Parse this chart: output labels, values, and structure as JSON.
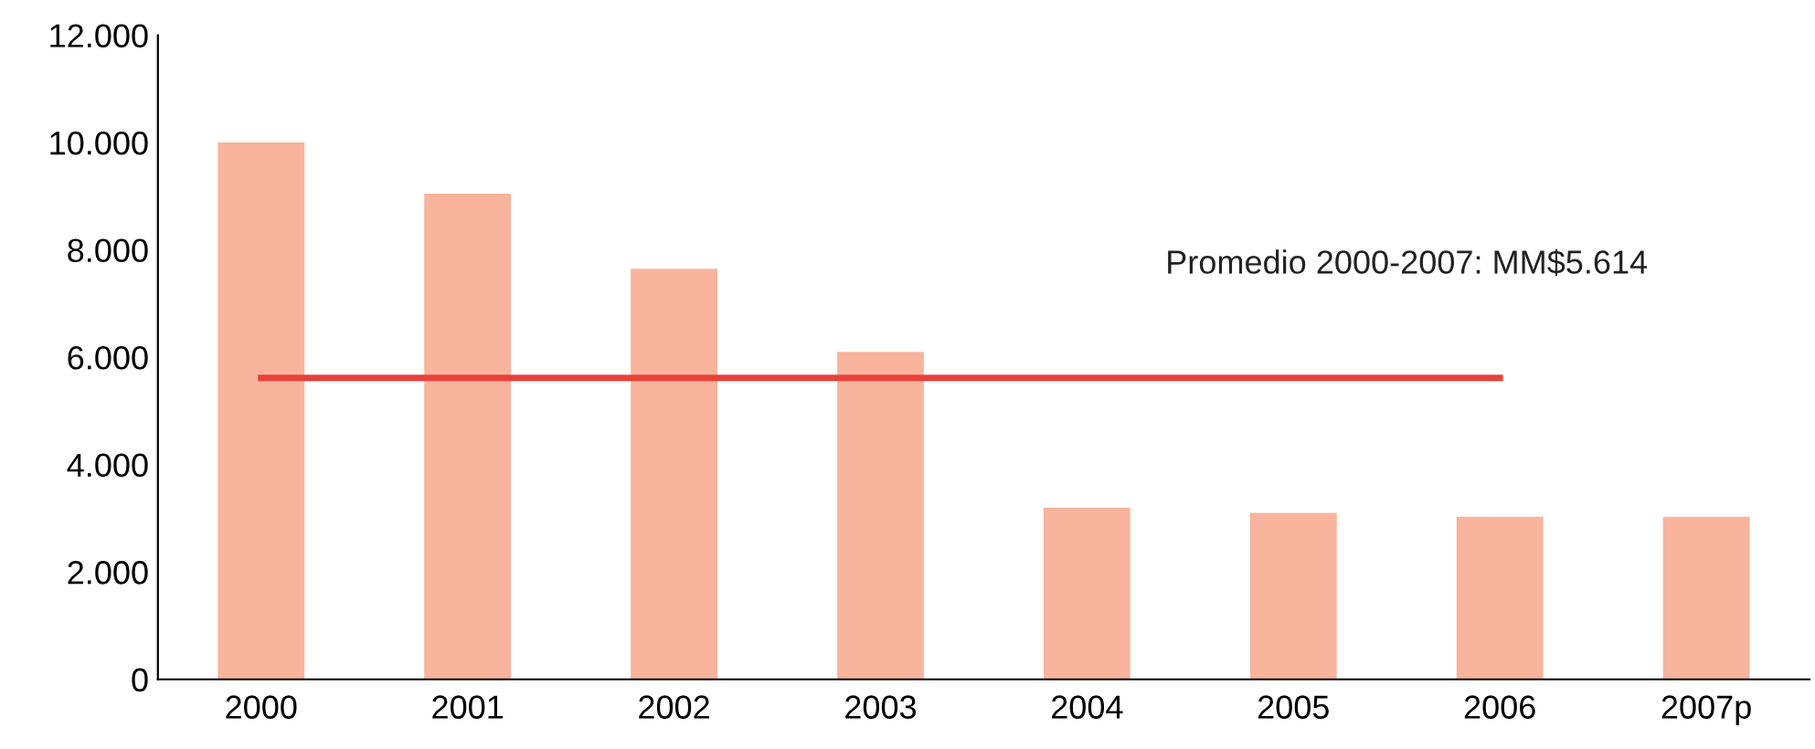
{
  "chart_data": {
    "type": "bar",
    "categories": [
      "2000",
      "2001",
      "2002",
      "2003",
      "2004",
      "2005",
      "2006",
      "2007p"
    ],
    "series": [
      {
        "color": "#f8b49c",
        "values": [
          10000,
          9050,
          7650,
          6100,
          3200,
          3100,
          3030,
          3030
        ]
      },
      {
        "type": "line",
        "color": "#e8413a",
        "values": [
          5614,
          5614,
          5614,
          5614,
          5614,
          5614,
          5614,
          null
        ]
      }
    ],
    "annotations": [
      "Promedio 2000-2007: MM$5.614"
    ],
    "ylim": [
      0,
      12000
    ],
    "yticks": [
      {
        "value": 0,
        "label": "0"
      },
      {
        "value": 2000,
        "label": "2.000"
      },
      {
        "value": 4000,
        "label": "4.000"
      },
      {
        "value": 6000,
        "label": "6.000"
      },
      {
        "value": 8000,
        "label": "8.000"
      },
      {
        "value": 10000,
        "label": "10.000"
      },
      {
        "value": 12000,
        "label": "12.000"
      }
    ],
    "grid": false,
    "legend": false
  }
}
